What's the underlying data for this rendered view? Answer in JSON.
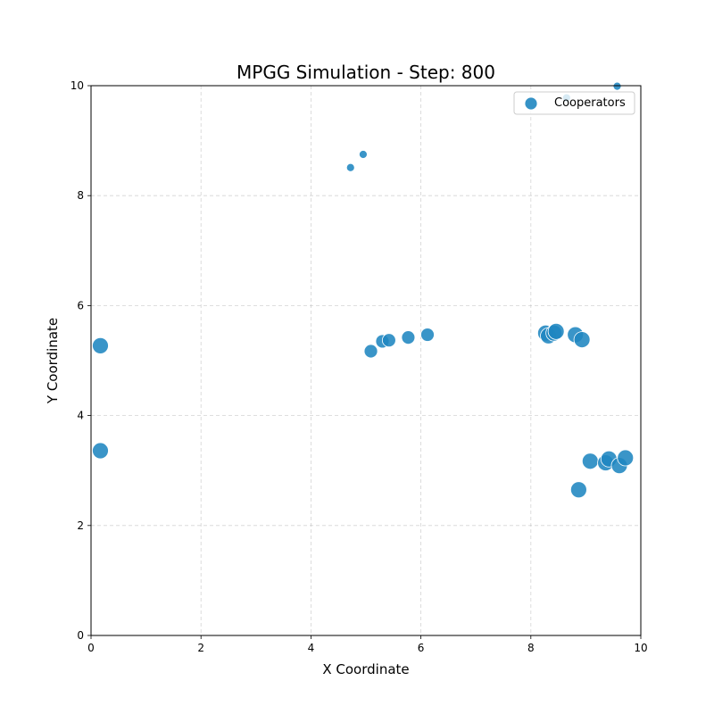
{
  "chart_data": {
    "type": "scatter",
    "title": "MPGG Simulation - Step: 800",
    "xlabel": "X Coordinate",
    "ylabel": "Y Coordinate",
    "xlim": [
      0,
      10
    ],
    "ylim": [
      0,
      10
    ],
    "xticks": [
      0,
      2,
      4,
      6,
      8,
      10
    ],
    "yticks": [
      0,
      2,
      4,
      6,
      8,
      10
    ],
    "grid": true,
    "legend_position": "top-right",
    "series": [
      {
        "name": "Cooperators",
        "color": "#1f86c0",
        "points": [
          {
            "x": 4.72,
            "y": 8.51,
            "size": "small"
          },
          {
            "x": 4.95,
            "y": 8.75,
            "size": "small"
          },
          {
            "x": 8.65,
            "y": 9.78,
            "size": "small"
          },
          {
            "x": 9.57,
            "y": 9.99,
            "size": "small"
          },
          {
            "x": 0.17,
            "y": 5.27,
            "size": "large"
          },
          {
            "x": 0.17,
            "y": 3.36,
            "size": "large"
          },
          {
            "x": 5.09,
            "y": 5.17,
            "size": "medium"
          },
          {
            "x": 5.3,
            "y": 5.35,
            "size": "medium"
          },
          {
            "x": 5.42,
            "y": 5.37,
            "size": "medium"
          },
          {
            "x": 5.77,
            "y": 5.42,
            "size": "medium"
          },
          {
            "x": 6.12,
            "y": 5.47,
            "size": "medium"
          },
          {
            "x": 8.27,
            "y": 5.5,
            "size": "large"
          },
          {
            "x": 8.32,
            "y": 5.45,
            "size": "large"
          },
          {
            "x": 8.42,
            "y": 5.5,
            "size": "large"
          },
          {
            "x": 8.46,
            "y": 5.53,
            "size": "large"
          },
          {
            "x": 8.81,
            "y": 5.47,
            "size": "large"
          },
          {
            "x": 8.93,
            "y": 5.38,
            "size": "large"
          },
          {
            "x": 8.87,
            "y": 2.65,
            "size": "large"
          },
          {
            "x": 9.08,
            "y": 3.17,
            "size": "large"
          },
          {
            "x": 9.36,
            "y": 3.14,
            "size": "large"
          },
          {
            "x": 9.42,
            "y": 3.21,
            "size": "large"
          },
          {
            "x": 9.61,
            "y": 3.09,
            "size": "large"
          },
          {
            "x": 9.72,
            "y": 3.23,
            "size": "large"
          }
        ]
      }
    ]
  }
}
